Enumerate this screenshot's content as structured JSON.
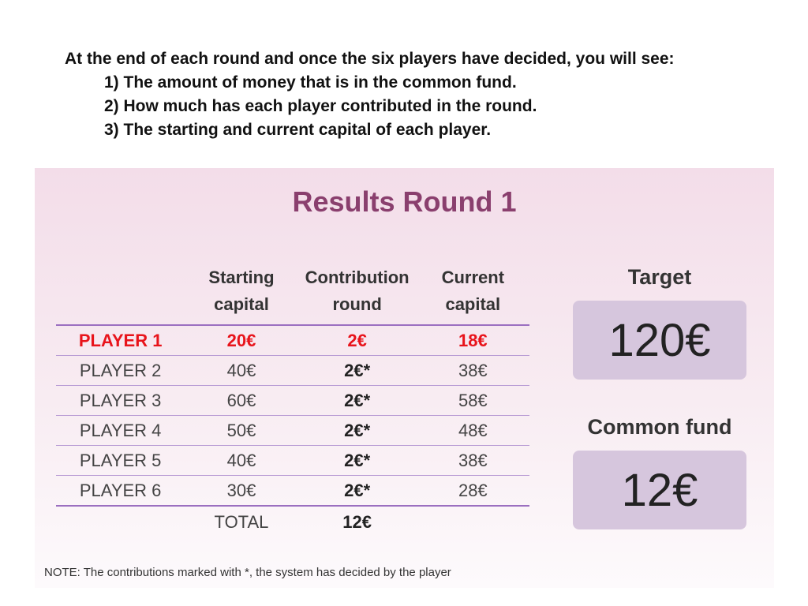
{
  "intro": {
    "heading": "At the end of each round and once the six players have decided, you will see:",
    "items": [
      "1) The amount of money that is in the common fund.",
      "2) How much has each player contributed in the round.",
      "3) The starting and current capital of each player."
    ]
  },
  "panel": {
    "title": "Results Round 1",
    "columns": [
      "",
      "Starting capital",
      "Contribution round",
      "Current capital"
    ],
    "rows": [
      {
        "player": "PLAYER 1",
        "starting": "20€",
        "contribution": "2€",
        "current": "18€"
      },
      {
        "player": "PLAYER 2",
        "starting": "40€",
        "contribution": "2€*",
        "current": "38€"
      },
      {
        "player": "PLAYER 3",
        "starting": "60€",
        "contribution": "2€*",
        "current": "58€"
      },
      {
        "player": "PLAYER 4",
        "starting": "50€",
        "contribution": "2€*",
        "current": "48€"
      },
      {
        "player": "PLAYER 5",
        "starting": "40€",
        "contribution": "2€*",
        "current": "38€"
      },
      {
        "player": "PLAYER 6",
        "starting": "30€",
        "contribution": "2€*",
        "current": "28€"
      }
    ],
    "total": {
      "label": "TOTAL",
      "value": "12€"
    },
    "target": {
      "label": "Target",
      "value": "120€"
    },
    "common_fund": {
      "label": "Common fund",
      "value": "12€"
    },
    "note": "NOTE: The contributions marked with *, the system has decided by the player"
  },
  "colors": {
    "title": "#8a3f6e",
    "highlight": "#e8141b",
    "divider": "#9b6fc0",
    "box": "#d6c6dd"
  }
}
